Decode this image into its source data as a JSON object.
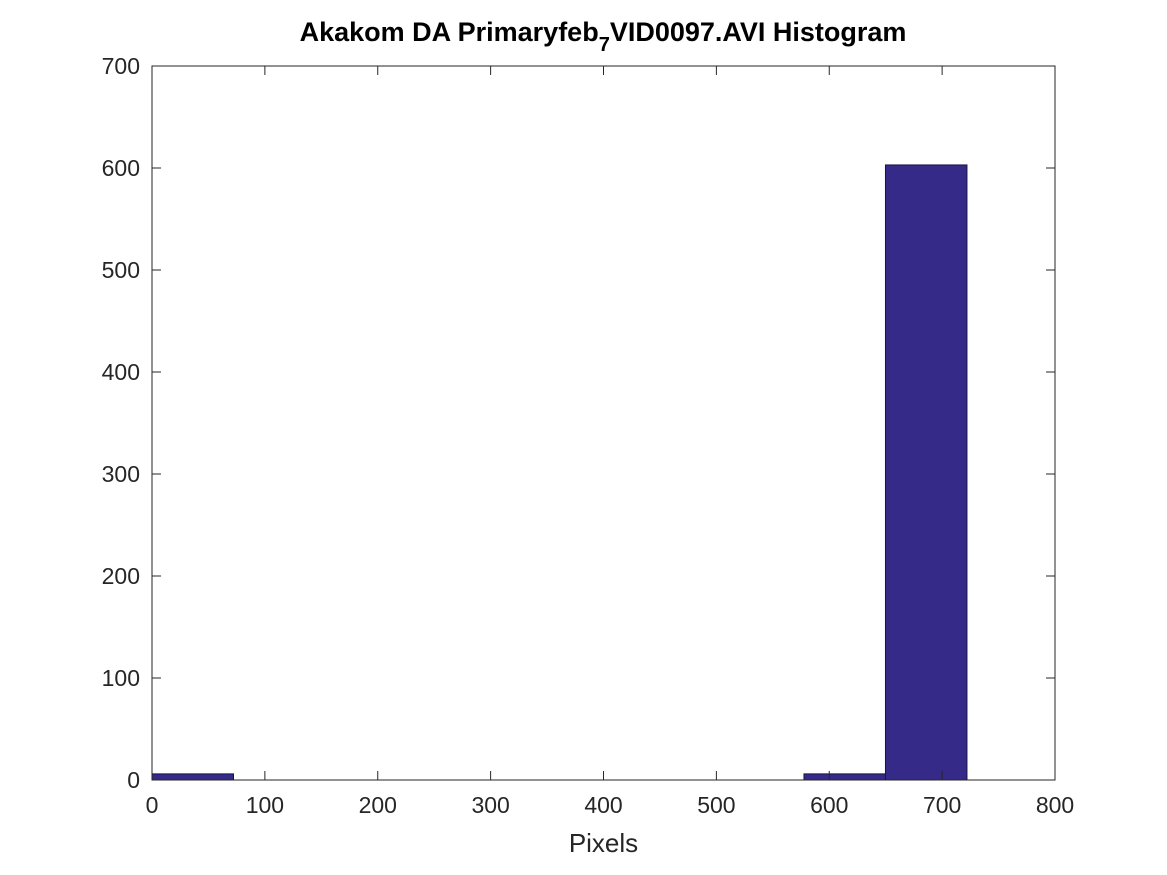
{
  "chart_data": {
    "type": "bar",
    "title_parts": [
      "Akakom DA Primaryfeb",
      "7",
      "VID0097.AVI Histogram"
    ],
    "xlabel": "Pixels",
    "ylabel": "",
    "xlim": [
      0,
      800
    ],
    "ylim": [
      0,
      700
    ],
    "xticks": [
      "0",
      "100",
      "200",
      "300",
      "400",
      "500",
      "600",
      "700",
      "800"
    ],
    "yticks": [
      "0",
      "100",
      "200",
      "300",
      "400",
      "500",
      "600",
      "700"
    ],
    "bin_edges": [
      0,
      72.2,
      144.4,
      216.6,
      288.8,
      361,
      433.2,
      505.4,
      577.6,
      649.8,
      722
    ],
    "values": [
      6,
      0,
      0,
      0,
      0,
      0,
      0,
      0,
      6,
      603
    ],
    "grid": false,
    "legend": "none",
    "colors": {
      "bar_fill": "#352a87",
      "bar_edge": "#1a1446",
      "axis": "#262626"
    }
  }
}
